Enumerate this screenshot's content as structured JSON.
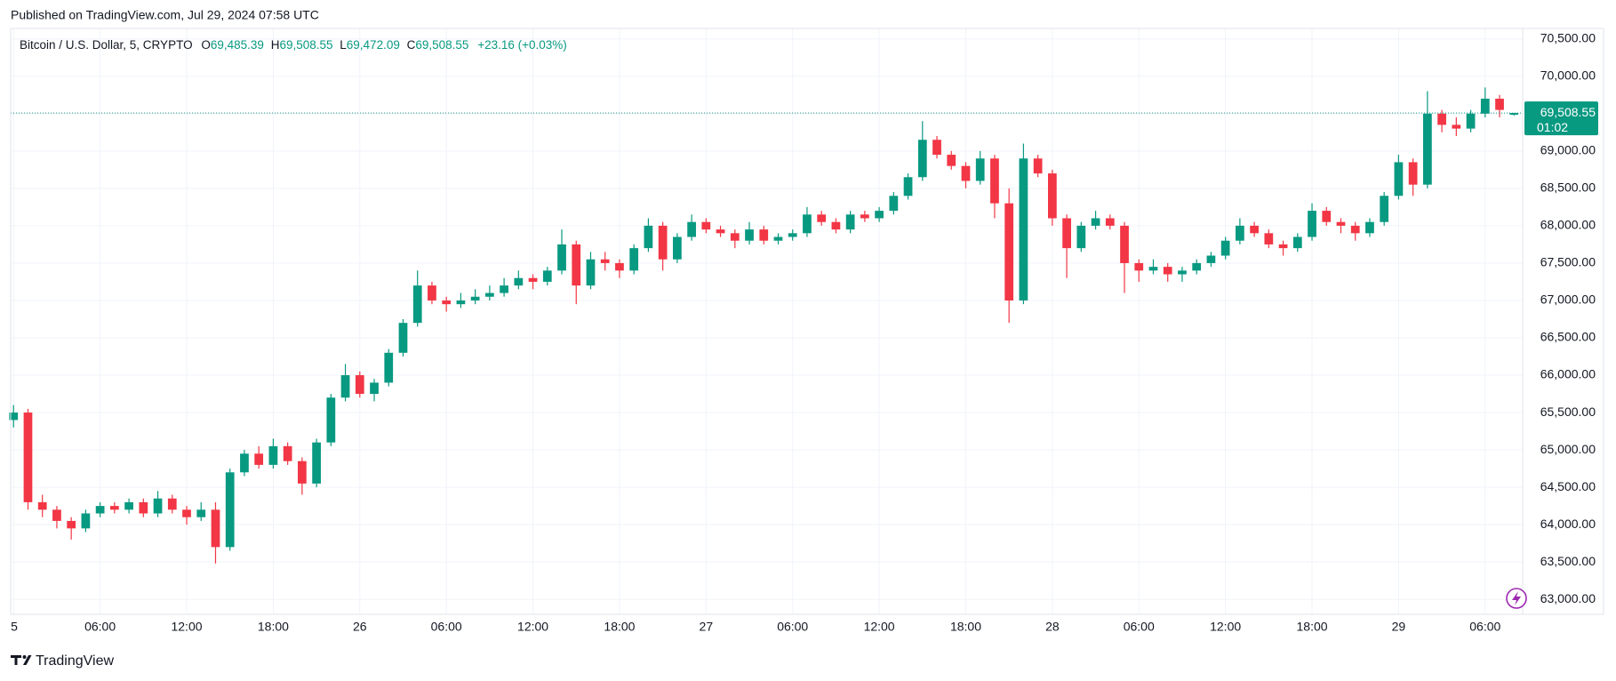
{
  "header": {
    "published": "Published on TradingView.com, Jul 29, 2024 07:58 UTC"
  },
  "footer": {
    "brand": "TradingView"
  },
  "chart_data": {
    "type": "candlestick",
    "title": "Bitcoin / U.S. Dollar, 5, CRYPTO",
    "legend": {
      "o_label": "O",
      "open": "69,485.39",
      "h_label": "H",
      "high": "69,508.55",
      "l_label": "L",
      "low": "69,472.09",
      "c_label": "C",
      "close": "69,508.55",
      "change": "+23.16 (+0.03%)"
    },
    "last_price_label": "69,508.55",
    "countdown": "01:02",
    "up_color": "#089981",
    "down_color": "#f23645",
    "grid": true,
    "x": [
      0,
      1,
      2,
      3,
      4,
      5,
      6,
      7,
      8,
      9,
      10,
      11,
      12,
      13,
      14,
      15,
      16,
      17,
      18,
      19,
      20,
      21,
      22,
      23,
      24,
      25,
      26,
      27,
      28,
      29,
      30,
      31,
      32,
      33,
      34,
      35,
      36,
      37,
      38,
      39,
      40,
      41,
      42,
      43,
      44,
      45,
      46,
      47,
      48,
      49,
      50,
      51,
      52,
      53,
      54,
      55,
      56,
      57,
      58,
      59,
      60,
      61,
      62,
      63,
      64,
      65,
      66,
      67,
      68,
      69,
      70,
      71,
      72,
      73,
      74,
      75,
      76,
      77,
      78,
      79,
      80,
      81,
      82,
      83,
      84,
      85,
      86,
      87,
      88,
      89,
      90,
      91,
      92,
      93,
      94,
      95,
      96,
      97,
      98,
      99,
      100,
      101,
      102,
      103,
      104
    ],
    "open": [
      65400,
      65500,
      64300,
      64200,
      64050,
      63950,
      64150,
      64250,
      64200,
      64300,
      64150,
      64350,
      64200,
      64100,
      64200,
      63700,
      64700,
      64950,
      64800,
      65050,
      64850,
      64550,
      65100,
      65700,
      66000,
      65750,
      65900,
      66300,
      66700,
      67200,
      67000,
      66950,
      67000,
      67050,
      67100,
      67200,
      67300,
      67250,
      67400,
      67750,
      67200,
      67550,
      67500,
      67400,
      67700,
      68000,
      67550,
      67850,
      68050,
      67950,
      67900,
      67800,
      67950,
      67800,
      67850,
      67900,
      68150,
      68050,
      67950,
      68150,
      68100,
      68200,
      68400,
      68650,
      69150,
      68950,
      68800,
      68600,
      68900,
      68300,
      67000,
      68900,
      68700,
      68100,
      67700,
      68000,
      68100,
      68000,
      67500,
      67400,
      67450,
      67350,
      67400,
      67500,
      67600,
      67800,
      68000,
      67900,
      67750,
      67700,
      67850,
      68200,
      68050,
      68000,
      67900,
      68050,
      68400,
      68850,
      68550,
      69500,
      69350,
      69300,
      69500,
      69700,
      69485.39
    ],
    "high": [
      65600,
      65550,
      64400,
      64250,
      64100,
      64200,
      64300,
      64300,
      64350,
      64350,
      64450,
      64400,
      64250,
      64300,
      64300,
      64750,
      65000,
      65050,
      65150,
      65100,
      64900,
      65150,
      65750,
      66150,
      66050,
      65950,
      66350,
      66750,
      67400,
      67250,
      67050,
      67100,
      67150,
      67200,
      67300,
      67400,
      67350,
      67450,
      67950,
      67800,
      67650,
      67650,
      67550,
      67750,
      68100,
      68050,
      67900,
      68150,
      68100,
      68000,
      67950,
      68050,
      68000,
      67900,
      67950,
      68250,
      68200,
      68100,
      68200,
      68200,
      68250,
      68450,
      68700,
      69400,
      69200,
      69000,
      68850,
      69000,
      68950,
      68500,
      69100,
      68950,
      68750,
      68150,
      68050,
      68200,
      68150,
      68050,
      67550,
      67550,
      67500,
      67450,
      67550,
      67650,
      67850,
      68100,
      68050,
      67950,
      67800,
      67900,
      68300,
      68250,
      68100,
      68050,
      68100,
      68450,
      68950,
      68900,
      69800,
      69550,
      69450,
      69550,
      69850,
      69750,
      69508.55
    ],
    "low": [
      65300,
      64200,
      64100,
      63950,
      63800,
      63900,
      64100,
      64150,
      64150,
      64100,
      64100,
      64150,
      64000,
      64050,
      63480,
      63650,
      64650,
      64750,
      64750,
      64800,
      64400,
      64500,
      65050,
      65650,
      65700,
      65650,
      65850,
      66250,
      66650,
      66950,
      66850,
      66900,
      66950,
      67000,
      67050,
      67150,
      67150,
      67200,
      67350,
      66950,
      67150,
      67400,
      67300,
      67350,
      67650,
      67400,
      67500,
      67800,
      67900,
      67850,
      67700,
      67750,
      67750,
      67750,
      67800,
      67850,
      68000,
      67900,
      67900,
      68050,
      68050,
      68150,
      68350,
      68600,
      68900,
      68750,
      68500,
      68550,
      68100,
      66700,
      66950,
      68650,
      68000,
      67300,
      67650,
      67950,
      67950,
      67100,
      67250,
      67350,
      67250,
      67250,
      67350,
      67450,
      67550,
      67750,
      67850,
      67700,
      67600,
      67650,
      67800,
      68000,
      67900,
      67800,
      67850,
      68000,
      68350,
      68400,
      68500,
      69250,
      69200,
      69250,
      69450,
      69450,
      69472.09
    ],
    "close": [
      65500,
      64300,
      64200,
      64050,
      63950,
      64150,
      64250,
      64200,
      64300,
      64150,
      64350,
      64200,
      64100,
      64200,
      63700,
      64700,
      64950,
      64800,
      65050,
      64850,
      64550,
      65100,
      65700,
      66000,
      65750,
      65900,
      66300,
      66700,
      67200,
      67000,
      66950,
      67000,
      67050,
      67100,
      67200,
      67300,
      67250,
      67400,
      67750,
      67200,
      67550,
      67500,
      67400,
      67700,
      68000,
      67550,
      67850,
      68050,
      67950,
      67900,
      67800,
      67950,
      67800,
      67850,
      67900,
      68150,
      68050,
      67950,
      68150,
      68100,
      68200,
      68400,
      68650,
      69150,
      68950,
      68800,
      68600,
      68900,
      68300,
      67000,
      68900,
      68700,
      68100,
      67700,
      68000,
      68100,
      68000,
      67500,
      67400,
      67450,
      67350,
      67400,
      67500,
      67600,
      67800,
      68000,
      67900,
      67750,
      67700,
      67850,
      68200,
      68050,
      68000,
      67900,
      68050,
      68400,
      68850,
      68550,
      69500,
      69350,
      69300,
      69500,
      69700,
      69550,
      69508.55
    ],
    "xlim": [
      -0.2,
      104.6
    ],
    "xticks": [
      {
        "value": 0,
        "label": "5"
      },
      {
        "value": 6,
        "label": "06:00"
      },
      {
        "value": 12,
        "label": "12:00"
      },
      {
        "value": 18,
        "label": "18:00"
      },
      {
        "value": 24,
        "label": "26"
      },
      {
        "value": 30,
        "label": "06:00"
      },
      {
        "value": 36,
        "label": "12:00"
      },
      {
        "value": 42,
        "label": "18:00"
      },
      {
        "value": 48,
        "label": "27"
      },
      {
        "value": 54,
        "label": "06:00"
      },
      {
        "value": 60,
        "label": "12:00"
      },
      {
        "value": 66,
        "label": "18:00"
      },
      {
        "value": 72,
        "label": "28"
      },
      {
        "value": 78,
        "label": "06:00"
      },
      {
        "value": 84,
        "label": "12:00"
      },
      {
        "value": 90,
        "label": "18:00"
      },
      {
        "value": 96,
        "label": "29"
      },
      {
        "value": 102,
        "label": "06:00"
      }
    ],
    "ylim": [
      62800,
      70640
    ],
    "yticks": [
      {
        "value": 63000,
        "label": "63,000.00"
      },
      {
        "value": 63500,
        "label": "63,500.00"
      },
      {
        "value": 64000,
        "label": "64,000.00"
      },
      {
        "value": 64500,
        "label": "64,500.00"
      },
      {
        "value": 65000,
        "label": "65,000.00"
      },
      {
        "value": 65500,
        "label": "65,500.00"
      },
      {
        "value": 66000,
        "label": "66,000.00"
      },
      {
        "value": 66500,
        "label": "66,500.00"
      },
      {
        "value": 67000,
        "label": "67,000.00"
      },
      {
        "value": 67500,
        "label": "67,500.00"
      },
      {
        "value": 68000,
        "label": "68,000.00"
      },
      {
        "value": 68500,
        "label": "68,500.00"
      },
      {
        "value": 69000,
        "label": "69,000.00"
      },
      {
        "value": 69500,
        "label": "69,500.00"
      },
      {
        "value": 70000,
        "label": "70,000.00"
      },
      {
        "value": 70500,
        "label": "70,500.00"
      }
    ]
  }
}
